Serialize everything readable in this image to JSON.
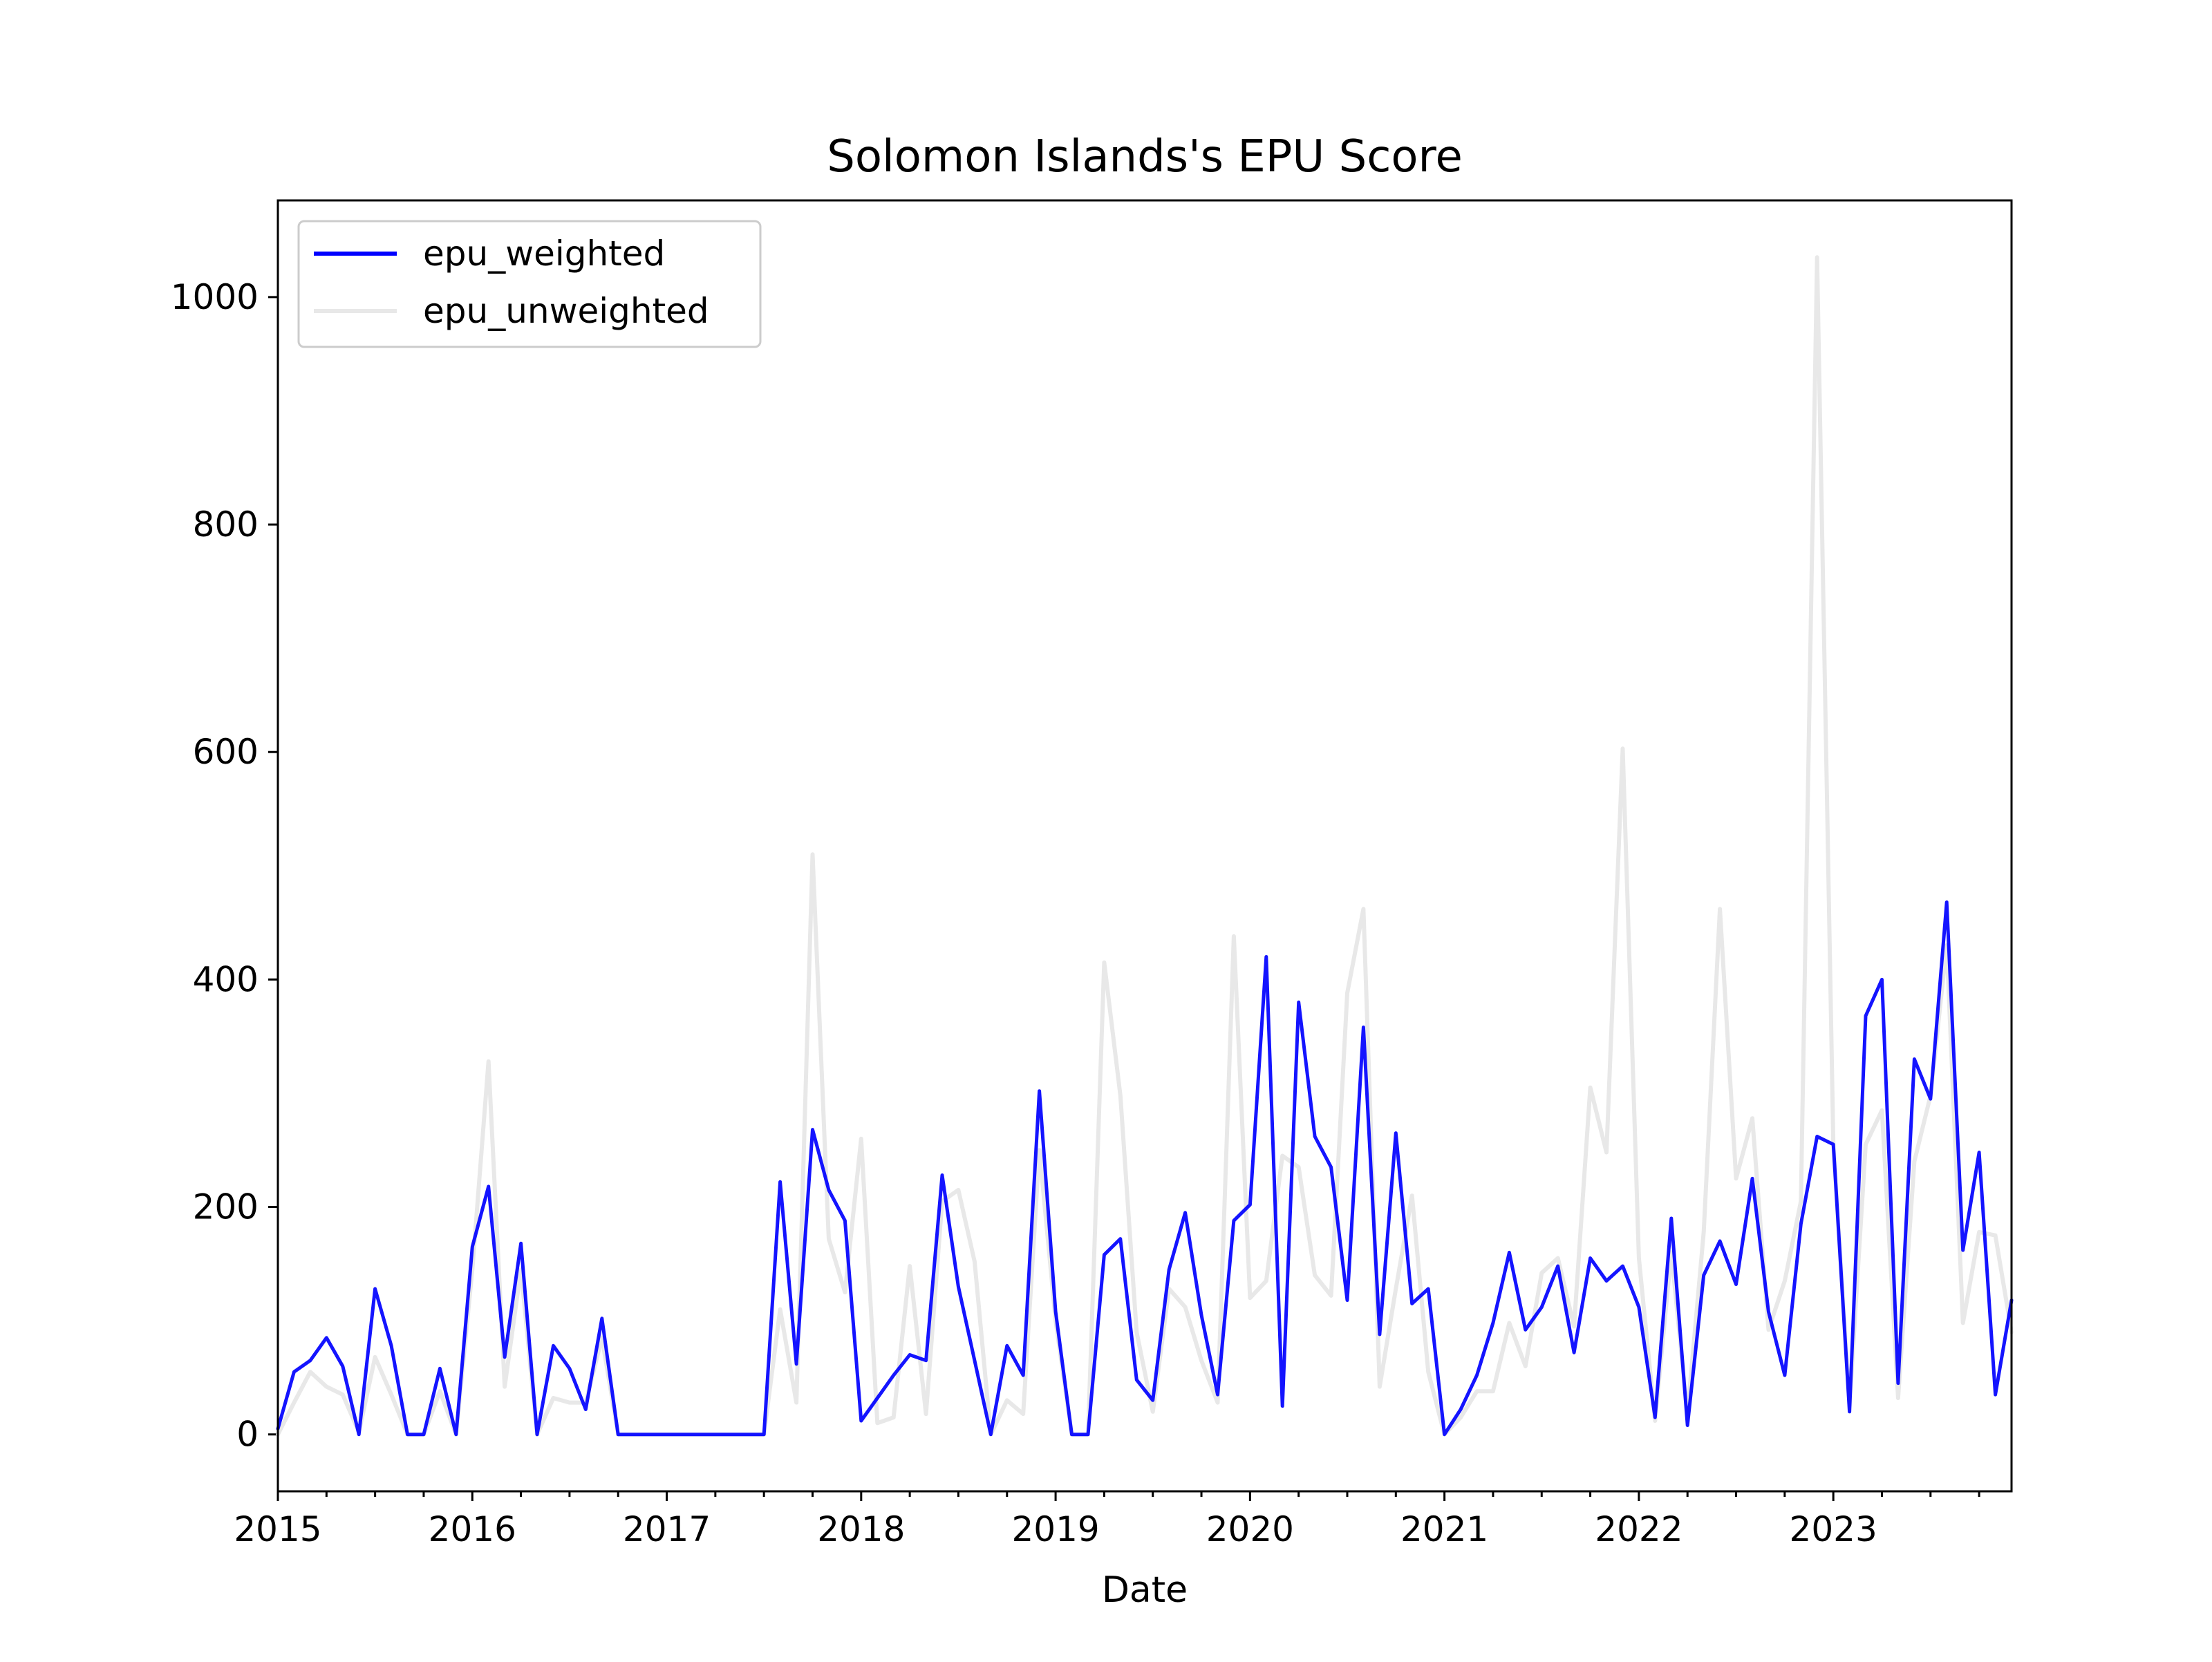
{
  "chart_data": {
    "type": "line",
    "title": "Solomon Islands's EPU Score",
    "xlabel": "Date",
    "ylabel": "",
    "x_start": "2015-01",
    "x_end": "2023-12",
    "x_frequency": "monthly",
    "xlim": [
      "2015-01",
      "2023-12"
    ],
    "ylim": [
      -50,
      1085
    ],
    "xticks": [
      "2015",
      "2016",
      "2017",
      "2018",
      "2019",
      "2020",
      "2021",
      "2022",
      "2023"
    ],
    "yticks": [
      0,
      200,
      400,
      600,
      800,
      1000
    ],
    "grid": false,
    "legend_position": "upper-left",
    "series": [
      {
        "name": "epu_weighted",
        "color": "#0000ff",
        "values": [
          5,
          55,
          65,
          85,
          60,
          0,
          128,
          78,
          0,
          0,
          58,
          0,
          165,
          218,
          68,
          168,
          0,
          78,
          58,
          22,
          102,
          0,
          0,
          0,
          0,
          0,
          0,
          0,
          0,
          0,
          0,
          222,
          62,
          268,
          215,
          188,
          12,
          32,
          52,
          70,
          65,
          228,
          130,
          65,
          0,
          78,
          52,
          302,
          108,
          0,
          0,
          158,
          172,
          48,
          30,
          145,
          195,
          105,
          35,
          188,
          202,
          420,
          25,
          380,
          262,
          235,
          118,
          358,
          88,
          265,
          115,
          128,
          0,
          22,
          52,
          98,
          160,
          92,
          112,
          148,
          72,
          155,
          135,
          148,
          112,
          15,
          190,
          8,
          140,
          170,
          132,
          225,
          108,
          52,
          185,
          262,
          255,
          20,
          368,
          400,
          45,
          330,
          295,
          468,
          162,
          248,
          35,
          118
        ]
      },
      {
        "name": "epu_unweighted",
        "color": "#e8e8e8",
        "values": [
          0,
          28,
          55,
          42,
          35,
          2,
          68,
          35,
          0,
          0,
          38,
          0,
          145,
          328,
          42,
          145,
          0,
          32,
          28,
          28,
          85,
          0,
          0,
          0,
          0,
          0,
          0,
          0,
          0,
          0,
          0,
          110,
          28,
          510,
          172,
          125,
          260,
          10,
          15,
          148,
          18,
          205,
          215,
          152,
          0,
          30,
          18,
          250,
          100,
          0,
          0,
          415,
          298,
          90,
          20,
          128,
          112,
          65,
          28,
          438,
          120,
          135,
          245,
          235,
          140,
          122,
          388,
          462,
          42,
          128,
          210,
          55,
          0,
          15,
          38,
          38,
          98,
          60,
          142,
          155,
          95,
          305,
          248,
          603,
          155,
          12,
          160,
          18,
          178,
          462,
          225,
          278,
          92,
          135,
          205,
          1035,
          255,
          25,
          255,
          285,
          32,
          240,
          298,
          430,
          98,
          178,
          175,
          90
        ]
      }
    ]
  }
}
